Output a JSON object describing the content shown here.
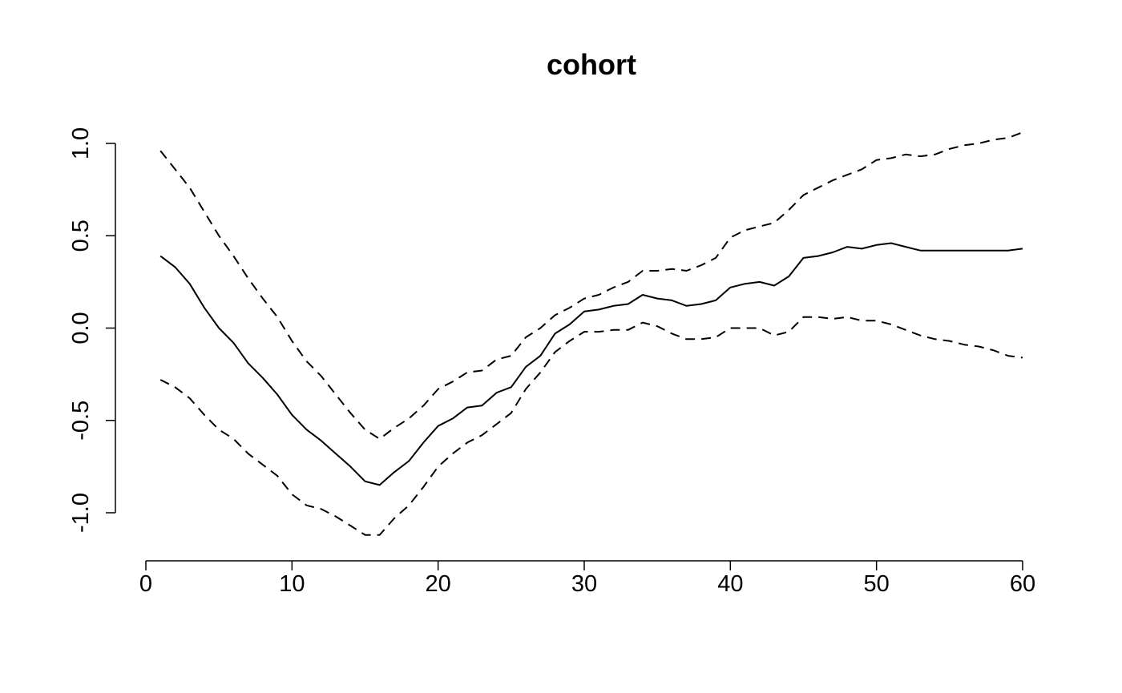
{
  "colors": {
    "line": "#000000",
    "background": "#ffffff"
  },
  "chart_data": {
    "type": "line",
    "title": "cohort",
    "xlabel": "",
    "ylabel": "",
    "xlim": [
      0,
      60
    ],
    "ylim": [
      -1.25,
      1.15
    ],
    "xticks": [
      0,
      10,
      20,
      30,
      40,
      50,
      60
    ],
    "xtick_labels": [
      "0",
      "10",
      "20",
      "30",
      "40",
      "50",
      "60"
    ],
    "yticks": [
      -1.0,
      -0.5,
      0.0,
      0.5,
      1.0
    ],
    "ytick_labels": [
      "-1.0",
      "-0.5",
      "0.0",
      "0.5",
      "1.0"
    ],
    "grid": false,
    "legend": "none",
    "x": [
      1,
      2,
      3,
      4,
      5,
      6,
      7,
      8,
      9,
      10,
      11,
      12,
      13,
      14,
      15,
      16,
      17,
      18,
      19,
      20,
      21,
      22,
      23,
      24,
      25,
      26,
      27,
      28,
      29,
      30,
      31,
      32,
      33,
      34,
      35,
      36,
      37,
      38,
      39,
      40,
      41,
      42,
      43,
      44,
      45,
      46,
      47,
      48,
      49,
      50,
      51,
      52,
      53,
      54,
      55,
      56,
      57,
      58,
      59,
      60
    ],
    "series": [
      {
        "style": "solid",
        "values": [
          0.39,
          0.33,
          0.24,
          0.11,
          0.0,
          -0.08,
          -0.19,
          -0.27,
          -0.36,
          -0.47,
          -0.55,
          -0.61,
          -0.68,
          -0.75,
          -0.83,
          -0.85,
          -0.78,
          -0.72,
          -0.62,
          -0.53,
          -0.49,
          -0.43,
          -0.42,
          -0.35,
          -0.32,
          -0.21,
          -0.15,
          -0.03,
          0.02,
          0.09,
          0.1,
          0.12,
          0.13,
          0.18,
          0.16,
          0.15,
          0.12,
          0.13,
          0.15,
          0.22,
          0.24,
          0.25,
          0.23,
          0.28,
          0.38,
          0.39,
          0.41,
          0.44,
          0.43,
          0.45,
          0.46,
          0.44,
          0.42,
          0.42,
          0.42,
          0.42,
          0.42,
          0.42,
          0.42,
          0.43
        ]
      },
      {
        "style": "dashed",
        "values": [
          0.96,
          0.86,
          0.76,
          0.63,
          0.5,
          0.39,
          0.27,
          0.16,
          0.06,
          -0.07,
          -0.18,
          -0.26,
          -0.36,
          -0.46,
          -0.55,
          -0.6,
          -0.54,
          -0.49,
          -0.42,
          -0.33,
          -0.29,
          -0.24,
          -0.23,
          -0.17,
          -0.15,
          -0.05,
          0.0,
          0.07,
          0.11,
          0.16,
          0.18,
          0.22,
          0.25,
          0.31,
          0.31,
          0.32,
          0.31,
          0.34,
          0.38,
          0.49,
          0.53,
          0.55,
          0.57,
          0.64,
          0.72,
          0.76,
          0.8,
          0.83,
          0.86,
          0.91,
          0.92,
          0.94,
          0.93,
          0.94,
          0.97,
          0.99,
          1.0,
          1.02,
          1.03,
          1.06
        ]
      },
      {
        "style": "dashed",
        "values": [
          -0.28,
          -0.32,
          -0.38,
          -0.47,
          -0.55,
          -0.6,
          -0.68,
          -0.74,
          -0.8,
          -0.9,
          -0.96,
          -0.98,
          -1.02,
          -1.07,
          -1.12,
          -1.12,
          -1.03,
          -0.96,
          -0.86,
          -0.75,
          -0.68,
          -0.62,
          -0.58,
          -0.52,
          -0.46,
          -0.33,
          -0.24,
          -0.13,
          -0.07,
          -0.02,
          -0.02,
          -0.01,
          -0.01,
          0.03,
          0.01,
          -0.03,
          -0.06,
          -0.06,
          -0.05,
          0.0,
          0.0,
          0.0,
          -0.04,
          -0.02,
          0.06,
          0.06,
          0.05,
          0.06,
          0.04,
          0.04,
          0.02,
          -0.01,
          -0.04,
          -0.06,
          -0.07,
          -0.09,
          -0.1,
          -0.12,
          -0.15,
          -0.16
        ]
      }
    ]
  }
}
